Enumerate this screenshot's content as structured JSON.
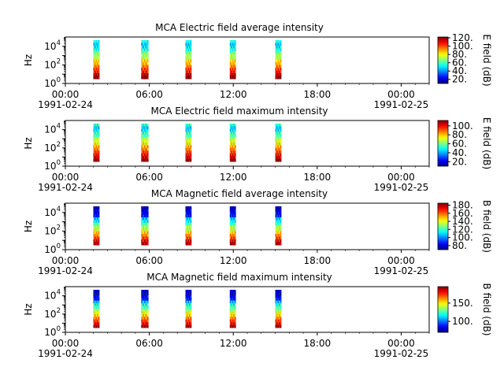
{
  "chart_data": [
    {
      "type": "heatmap",
      "title": "MCA  Electric field average intensity",
      "ylabel": "Hz",
      "colorbar_label": "E field (dB)",
      "colorbar_ticks": [
        {
          "value": 20,
          "label": "20."
        },
        {
          "value": 40,
          "label": "40."
        },
        {
          "value": 60,
          "label": "60."
        },
        {
          "value": 80,
          "label": "80."
        },
        {
          "value": 100,
          "label": "100."
        },
        {
          "value": 120,
          "label": "120."
        }
      ],
      "clim": [
        10,
        122
      ],
      "segments": [
        {
          "start": "02:00",
          "end": "02:25"
        },
        {
          "start": "05:25",
          "end": "05:55"
        },
        {
          "start": "08:35",
          "end": "09:00"
        },
        {
          "start": "11:45",
          "end": "12:10"
        },
        {
          "start": "15:00",
          "end": "15:25"
        }
      ]
    },
    {
      "type": "heatmap",
      "title": "MCA  Electric field maximum intensity",
      "ylabel": "Hz",
      "colorbar_label": "E field (dB)",
      "colorbar_ticks": [
        {
          "value": 20,
          "label": "20."
        },
        {
          "value": 40,
          "label": "40."
        },
        {
          "value": 60,
          "label": "60."
        },
        {
          "value": 80,
          "label": "80."
        },
        {
          "value": 100,
          "label": "100."
        }
      ],
      "clim": [
        10,
        112
      ],
      "segments": [
        {
          "start": "02:00",
          "end": "02:25"
        },
        {
          "start": "05:25",
          "end": "05:55"
        },
        {
          "start": "08:35",
          "end": "09:00"
        },
        {
          "start": "11:45",
          "end": "12:10"
        },
        {
          "start": "15:00",
          "end": "15:25"
        }
      ]
    },
    {
      "type": "heatmap",
      "title": "MCA  Magnetic field average intensity",
      "ylabel": "Hz",
      "colorbar_label": "B field (dB)",
      "colorbar_ticks": [
        {
          "value": 80,
          "label": "80."
        },
        {
          "value": 100,
          "label": "100."
        },
        {
          "value": 120,
          "label": "120."
        },
        {
          "value": 140,
          "label": "140."
        },
        {
          "value": 160,
          "label": "160."
        },
        {
          "value": 180,
          "label": "180."
        }
      ],
      "clim": [
        70,
        185
      ],
      "segments": [
        {
          "start": "02:00",
          "end": "02:25"
        },
        {
          "start": "05:25",
          "end": "05:55"
        },
        {
          "start": "08:35",
          "end": "09:00"
        },
        {
          "start": "11:45",
          "end": "12:10"
        },
        {
          "start": "15:00",
          "end": "15:25"
        }
      ]
    },
    {
      "type": "heatmap",
      "title": "MCA  Magnetic field maximum intensity",
      "ylabel": "Hz",
      "colorbar_label": "B field (dB)",
      "colorbar_ticks": [
        {
          "value": 100,
          "label": "100."
        },
        {
          "value": 150,
          "label": "150."
        }
      ],
      "clim": [
        70,
        195
      ],
      "segments": [
        {
          "start": "02:00",
          "end": "02:25"
        },
        {
          "start": "05:25",
          "end": "05:55"
        },
        {
          "start": "08:35",
          "end": "09:00"
        },
        {
          "start": "11:45",
          "end": "12:10"
        },
        {
          "start": "15:00",
          "end": "15:25"
        }
      ]
    }
  ],
  "x_axis": {
    "range": [
      "1991-02-24 00:00",
      "1991-02-25 02:00"
    ],
    "ticks": [
      {
        "time": "00:00",
        "label": "00:00",
        "date": "1991-02-24"
      },
      {
        "time": "06:00",
        "label": "06:00",
        "date": ""
      },
      {
        "time": "12:00",
        "label": "12:00",
        "date": ""
      },
      {
        "time": "18:00",
        "label": "18:00",
        "date": ""
      },
      {
        "time": "24:00",
        "label": "00:00",
        "date": "1991-02-25"
      }
    ]
  },
  "y_axis": {
    "scale": "log",
    "range": [
      1,
      100000
    ],
    "ticks": [
      {
        "value": 1,
        "base": "10",
        "exp": "0"
      },
      {
        "value": 100,
        "base": "10",
        "exp": "2"
      },
      {
        "value": 10000,
        "base": "10",
        "exp": "4"
      }
    ]
  },
  "colormap": "jet"
}
